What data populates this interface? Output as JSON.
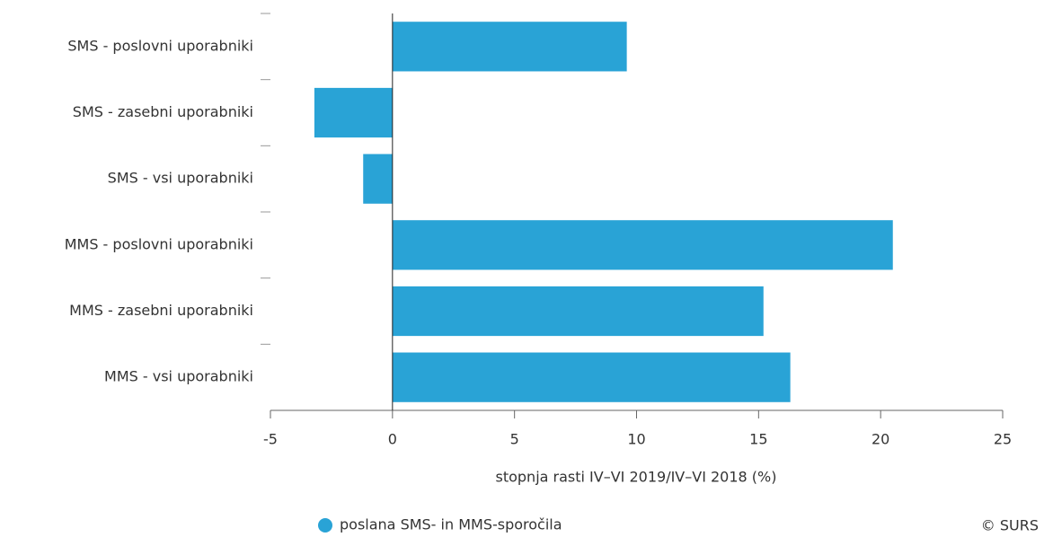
{
  "chart_data": {
    "type": "bar",
    "orientation": "horizontal",
    "categories": [
      "SMS - poslovni uporabniki",
      "SMS - zasebni uporabniki",
      "SMS - vsi uporabniki",
      "MMS - poslovni uporabniki",
      "MMS - zasebni uporabniki",
      "MMS - vsi uporabniki"
    ],
    "series": [
      {
        "name": "poslana SMS- in MMS-sporočila",
        "color": "#29a3d6",
        "values": [
          9.6,
          -3.2,
          -1.2,
          20.5,
          15.2,
          16.3
        ]
      }
    ],
    "xlabel": "stopnja rasti IV–VI 2019/IV–VI 2018 (%)",
    "xlim": [
      -5,
      25
    ],
    "xticks": [
      -5,
      0,
      5,
      10,
      15,
      20,
      25
    ],
    "credit": "© SURS"
  }
}
